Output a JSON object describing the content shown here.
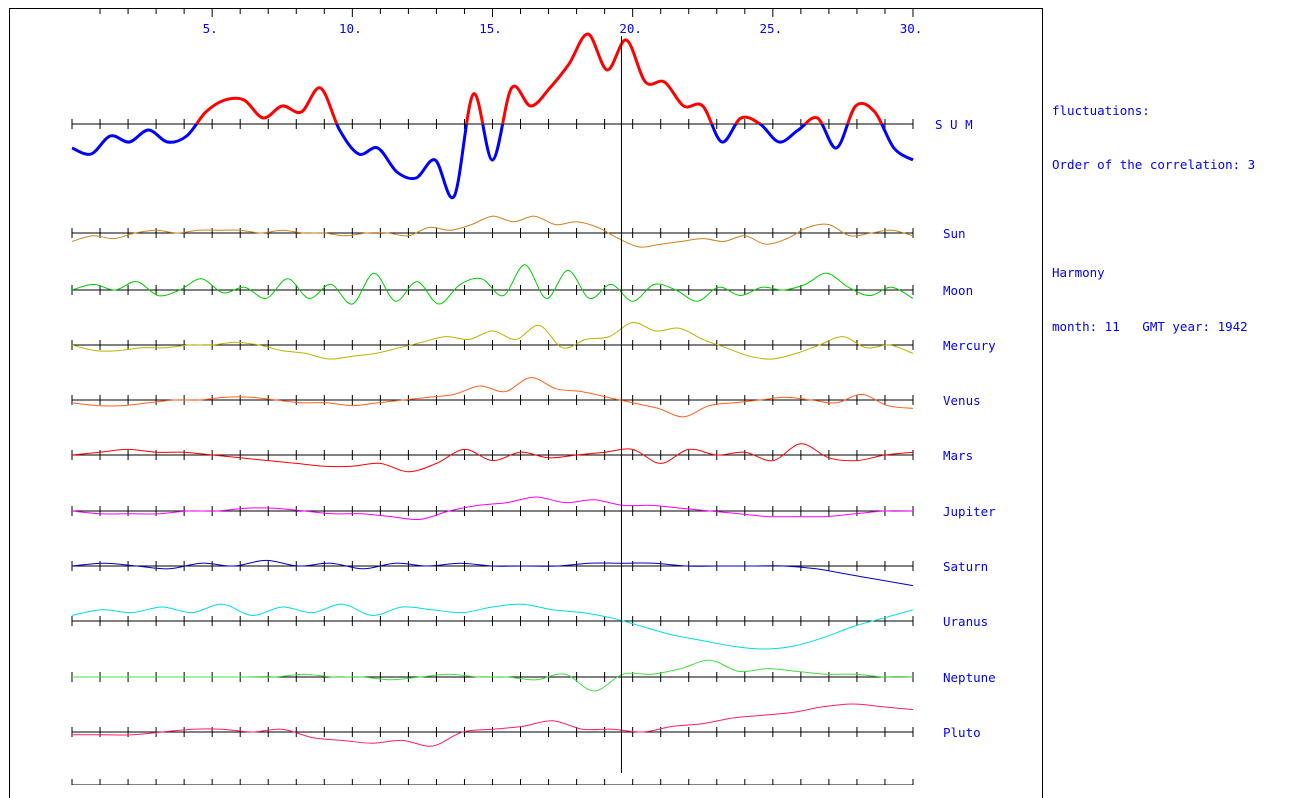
{
  "info": {
    "line1": "fluctuations:",
    "line2": "Order of the correlation: 3",
    "line3": "Harmony",
    "line4": "month: 11   GMT year: 1942"
  },
  "chart_data": {
    "type": "line",
    "x_tick_labels": [
      "5.",
      "10.",
      "15.",
      "20.",
      "25.",
      "30."
    ],
    "x_tick_values": [
      5,
      10,
      15,
      20,
      25,
      30
    ],
    "xlim": [
      0,
      30
    ],
    "cursor_x": 19.6,
    "series": [
      {
        "name": "S U M",
        "color": "#ff0000",
        "color_negative": "#0000ff",
        "values": [
          -0.4,
          -0.5,
          -0.2,
          -0.3,
          -0.1,
          -0.3,
          -0.2,
          0.2,
          0.4,
          0.4,
          0.1,
          0.3,
          0.2,
          0.6,
          -0.1,
          -0.5,
          -0.4,
          -0.8,
          -0.9,
          -0.6,
          -1.2,
          0.5,
          -0.6,
          0.6,
          0.3,
          0.6,
          1.0,
          1.5,
          0.9,
          1.4,
          0.7,
          0.7,
          0.3,
          0.3,
          -0.3,
          0.1,
          0.0,
          -0.3,
          -0.1,
          0.1,
          -0.4,
          0.3,
          0.2,
          -0.4,
          -0.6
        ]
      },
      {
        "name": "Sun",
        "color": "#d08020",
        "values": [
          -0.3,
          -0.1,
          -0.2,
          0.0,
          0.1,
          0.0,
          0.1,
          0.1,
          0.1,
          0.0,
          0.1,
          0.0,
          0.0,
          -0.1,
          0.0,
          0.0,
          -0.1,
          0.2,
          0.1,
          0.3,
          0.6,
          0.4,
          0.6,
          0.3,
          0.4,
          0.2,
          -0.2,
          -0.5,
          -0.4,
          -0.3,
          -0.2,
          -0.3,
          -0.1,
          -0.4,
          -0.2,
          0.2,
          0.3,
          -0.1,
          0.0,
          0.1,
          -0.1
        ]
      },
      {
        "name": "Moon",
        "color": "#00cc00",
        "values": [
          0.0,
          0.2,
          0.0,
          0.3,
          -0.2,
          0.0,
          0.4,
          -0.1,
          0.1,
          -0.3,
          0.4,
          -0.3,
          0.2,
          -0.5,
          0.6,
          -0.4,
          0.3,
          -0.5,
          0.2,
          0.4,
          -0.2,
          0.9,
          -0.3,
          0.7,
          -0.3,
          0.2,
          -0.4,
          0.2,
          0.0,
          -0.4,
          0.1,
          -0.2,
          0.1,
          0.0,
          0.2,
          0.6,
          0.1,
          -0.2,
          0.1,
          -0.3
        ]
      },
      {
        "name": "Mercury",
        "color": "#c0b000",
        "values": [
          0.0,
          -0.2,
          -0.2,
          -0.1,
          -0.1,
          0.0,
          0.0,
          0.1,
          0.0,
          -0.2,
          -0.3,
          -0.5,
          -0.4,
          -0.3,
          -0.1,
          0.1,
          0.3,
          0.2,
          0.5,
          0.2,
          0.7,
          -0.1,
          0.2,
          0.3,
          0.8,
          0.5,
          0.6,
          0.2,
          -0.1,
          -0.4,
          -0.5,
          -0.3,
          0.0,
          0.3,
          -0.1,
          0.0,
          -0.3
        ]
      },
      {
        "name": "Venus",
        "color": "#ff6020",
        "values": [
          -0.1,
          -0.2,
          -0.2,
          -0.1,
          0.0,
          0.0,
          0.1,
          0.1,
          0.0,
          -0.1,
          -0.1,
          -0.2,
          -0.1,
          0.0,
          0.1,
          0.2,
          0.5,
          0.3,
          0.8,
          0.4,
          0.3,
          0.1,
          -0.1,
          -0.3,
          -0.6,
          -0.2,
          -0.1,
          0.0,
          0.1,
          0.0,
          -0.1,
          0.2,
          -0.2,
          -0.3
        ]
      },
      {
        "name": "Mars",
        "color": "#ff0000",
        "values": [
          0.0,
          0.1,
          0.2,
          0.1,
          0.1,
          0.0,
          -0.1,
          -0.2,
          -0.3,
          -0.4,
          -0.4,
          -0.3,
          -0.6,
          -0.3,
          0.2,
          -0.2,
          0.1,
          -0.1,
          0.0,
          0.1,
          0.2,
          -0.3,
          0.2,
          0.0,
          0.1,
          -0.2,
          0.4,
          -0.1,
          -0.2,
          0.0,
          0.1
        ]
      },
      {
        "name": "Jupiter",
        "color": "#ff00ff",
        "values": [
          0.0,
          -0.1,
          -0.1,
          -0.1,
          0.0,
          0.0,
          0.1,
          0.1,
          0.0,
          -0.1,
          -0.1,
          -0.2,
          -0.3,
          0.0,
          0.2,
          0.3,
          0.5,
          0.3,
          0.4,
          0.2,
          0.2,
          0.1,
          0.0,
          -0.1,
          -0.2,
          -0.2,
          -0.2,
          -0.1,
          0.0,
          0.0
        ]
      },
      {
        "name": "Saturn",
        "color": "#0000cc",
        "values": [
          0.0,
          0.1,
          0.0,
          -0.1,
          0.1,
          0.0,
          0.2,
          0.0,
          0.1,
          -0.1,
          0.1,
          0.0,
          0.1,
          0.0,
          0.0,
          0.0,
          0.1,
          0.1,
          0.1,
          0.0,
          0.0,
          0.0,
          0.0,
          -0.1,
          -0.3,
          -0.5,
          -0.7
        ]
      },
      {
        "name": "Uranus",
        "color": "#00dddd",
        "values": [
          0.2,
          0.4,
          0.3,
          0.5,
          0.3,
          0.6,
          0.2,
          0.5,
          0.3,
          0.6,
          0.2,
          0.5,
          0.4,
          0.3,
          0.5,
          0.6,
          0.4,
          0.3,
          0.1,
          -0.2,
          -0.5,
          -0.7,
          -0.9,
          -1.0,
          -0.9,
          -0.6,
          -0.2,
          0.1,
          0.4
        ]
      },
      {
        "name": "Neptune",
        "color": "#44dd44",
        "values": [
          0.0,
          0.0,
          0.0,
          0.0,
          0.0,
          0.0,
          0.0,
          0.0,
          0.1,
          0.0,
          0.0,
          -0.1,
          0.0,
          0.1,
          0.0,
          0.0,
          -0.1,
          0.1,
          -0.5,
          0.1,
          0.1,
          0.3,
          0.6,
          0.2,
          0.3,
          0.2,
          0.1,
          0.1,
          0.0,
          0.0
        ]
      },
      {
        "name": "Pluto",
        "color": "#ff2060",
        "values": [
          -0.1,
          -0.1,
          -0.1,
          0.0,
          0.1,
          0.1,
          0.0,
          0.1,
          -0.2,
          -0.3,
          -0.4,
          -0.3,
          -0.5,
          0.0,
          0.1,
          0.2,
          0.4,
          0.1,
          0.1,
          0.0,
          0.2,
          0.3,
          0.5,
          0.6,
          0.7,
          0.9,
          1.0,
          0.9,
          0.8
        ]
      }
    ]
  }
}
